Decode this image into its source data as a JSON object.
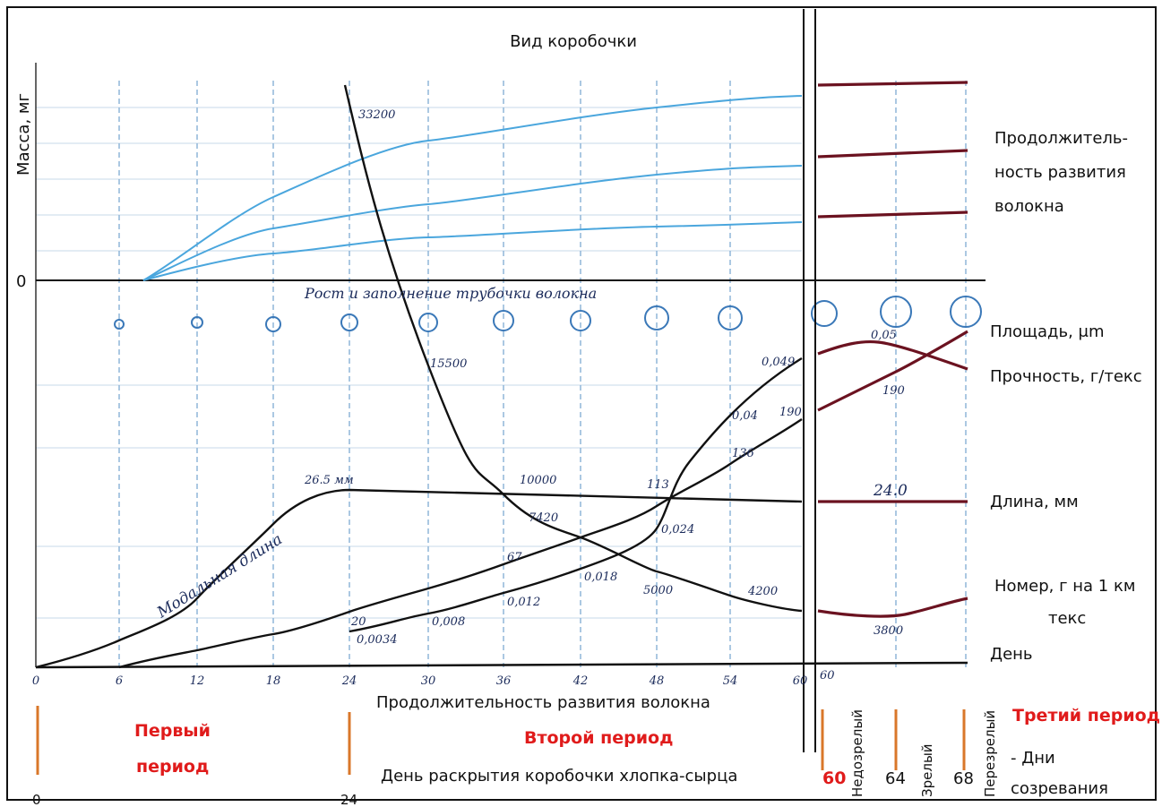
{
  "header": {
    "title": "Вид коробочки"
  },
  "axis": {
    "y_label": "Масса, мг",
    "zero": "0",
    "growth_label": "Рост и заполнение трубочки волокна",
    "days": [
      "0",
      "6",
      "12",
      "18",
      "24",
      "30",
      "36",
      "42",
      "48",
      "54",
      "60"
    ],
    "right_day": "60"
  },
  "curve_labels": {
    "modal_length": "Модальная длина",
    "modal_value": "26.5 мм",
    "number": [
      "33200",
      "15500",
      "10000",
      "7420",
      "5000",
      "4200",
      "3800"
    ],
    "area": [
      "0,0034",
      "0,008",
      "0,012",
      "0,018",
      "0,024",
      "0,04",
      "0,049",
      "0,05"
    ],
    "strength": [
      "20",
      "67",
      "113",
      "136",
      "190",
      "190"
    ],
    "length": "24.0"
  },
  "legend": {
    "duration": [
      "Продолжитель-",
      "ность развития",
      "волокна"
    ],
    "area": "Площадь, μm",
    "strength": "Прочность, г/текс",
    "length": "Длина, мм",
    "number": [
      "Номер, г на 1 км",
      "текс"
    ],
    "day": "День"
  },
  "footer": {
    "duration": "Продолжительность развития волокна",
    "opening": "День раскрытия коробочки хлопка-сырца",
    "first_period": [
      "Первый",
      "период"
    ],
    "second_period": "Второй период",
    "third_period": "Третий период",
    "unripe": "Недозрелый",
    "ripe": "Зрелый",
    "overripe": "Перезрелый",
    "ripening_days": [
      "- Дни",
      "созревания"
    ],
    "day_marks": [
      "0",
      "24",
      "60",
      "64",
      "68"
    ]
  }
}
